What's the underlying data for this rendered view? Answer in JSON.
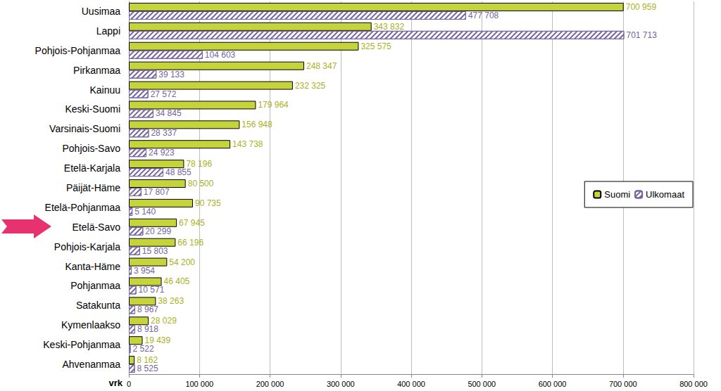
{
  "chart_data": {
    "type": "bar",
    "orientation": "horizontal",
    "xlabel": "vrk",
    "categories": [
      "Uusimaa",
      "Lappi",
      "Pohjois-Pohjanmaa",
      "Pirkanmaa",
      "Kainuu",
      "Keski-Suomi",
      "Varsinais-Suomi",
      "Pohjois-Savo",
      "Etelä-Karjala",
      "Päijät-Häme",
      "Etelä-Pohjanmaa",
      "Etelä-Savo",
      "Pohjois-Karjala",
      "Kanta-Häme",
      "Pohjanmaa",
      "Satakunta",
      "Kymenlaakso",
      "Keski-Pohjanmaa",
      "Ahvenanmaa"
    ],
    "series": [
      {
        "name": "Suomi",
        "color": "#c4d43a",
        "values": [
          700959,
          343832,
          325575,
          248347,
          232325,
          179964,
          156948,
          143738,
          78196,
          80500,
          90735,
          67945,
          66196,
          54200,
          46405,
          38263,
          28029,
          19439,
          8162
        ],
        "value_labels": [
          "700 959",
          "343 832",
          "325 575",
          "248 347",
          "232 325",
          "179 964",
          "156 948",
          "143 738",
          "78 196",
          "80 500",
          "90 735",
          "67 945",
          "66 196",
          "54 200",
          "46 405",
          "38 263",
          "28 029",
          "19 439",
          "8 162"
        ]
      },
      {
        "name": "Ulkomaat",
        "color": "#7563a0",
        "values": [
          477708,
          701713,
          104603,
          39133,
          27572,
          34845,
          28337,
          24923,
          48855,
          17807,
          5140,
          20299,
          15803,
          3954,
          10571,
          8967,
          8918,
          2522,
          8525
        ],
        "value_labels": [
          "477 708",
          "701 713",
          "104 603",
          "39 133",
          "27 572",
          "34 845",
          "28 337",
          "24 923",
          "48 855",
          "17 807",
          "5 140",
          "20 299",
          "15 803",
          "3 954",
          "10 571",
          "8 967",
          "8 918",
          "2 522",
          "8 525"
        ]
      }
    ],
    "xlim": [
      0,
      800000
    ],
    "xticks": [
      {
        "value": 0,
        "label": "0"
      },
      {
        "value": 100000,
        "label": "100 000"
      },
      {
        "value": 200000,
        "label": "200 000"
      },
      {
        "value": 300000,
        "label": "300 000"
      },
      {
        "value": 400000,
        "label": "400 000"
      },
      {
        "value": 500000,
        "label": "500 000"
      },
      {
        "value": 600000,
        "label": "600 000"
      },
      {
        "value": 700000,
        "label": "700 000"
      },
      {
        "value": 800000,
        "label": "800 000"
      }
    ],
    "grid": true,
    "legend": "right",
    "data_labels": true
  }
}
